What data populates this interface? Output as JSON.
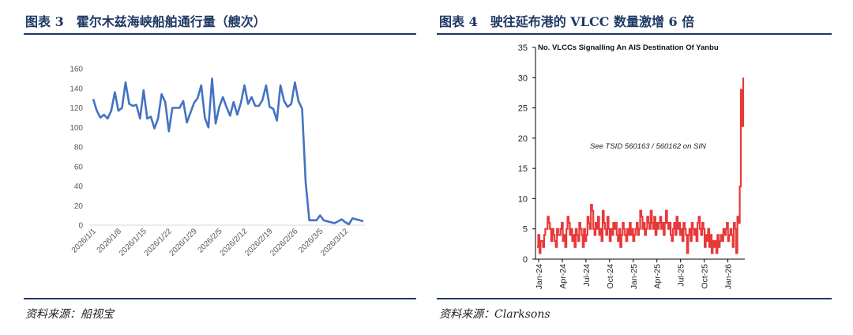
{
  "left": {
    "figure_title": "图表 3　霍尔木兹海峡船舶通行量（艘次）",
    "source": "资料来源：船视宝"
  },
  "right": {
    "figure_title": "图表 4　驶往延布港的 VLCC 数量激增 6 倍",
    "source": "资料来源：Clarksons"
  },
  "chart_data": [
    {
      "type": "line",
      "title": "",
      "xlabel": "",
      "ylabel": "",
      "ylim": [
        0,
        160
      ],
      "yticks": [
        0,
        20,
        40,
        60,
        80,
        100,
        120,
        140,
        160
      ],
      "xtick_labels": [
        "2026/1/1",
        "2026/1/8",
        "2026/1/15",
        "2026/1/22",
        "2026/1/29",
        "2026/2/5",
        "2026/2/12",
        "2026/2/19",
        "2026/2/26",
        "2026/3/5",
        "2026/3/12"
      ],
      "grid": false,
      "legend": "none",
      "color": "#4472C4",
      "series": [
        {
          "values": [
            129,
            117,
            110,
            113,
            109,
            117,
            136,
            117,
            120,
            146,
            124,
            122,
            123,
            109,
            138,
            109,
            111,
            99,
            109,
            134,
            126,
            96,
            120,
            120,
            120,
            127,
            105,
            115,
            125,
            130,
            143,
            110,
            100,
            150,
            104,
            121,
            131,
            121,
            112,
            126,
            113,
            125,
            143,
            124,
            131,
            122,
            122,
            128,
            143,
            121,
            119,
            107,
            143,
            127,
            121,
            124,
            146,
            127,
            119,
            44,
            5,
            5,
            5,
            10,
            5,
            4,
            3,
            2,
            4,
            6,
            3,
            1,
            7,
            6,
            5,
            4
          ]
        }
      ]
    },
    {
      "type": "line",
      "title": "No. VLCCs Signalling An AIS Destination Of Yanbu",
      "annotation": "See TSID 560163 / 560162 on SIN",
      "xlabel": "",
      "ylabel": "",
      "ylim": [
        0,
        35
      ],
      "yticks": [
        0,
        5,
        10,
        15,
        20,
        25,
        30,
        35
      ],
      "xtick_labels": [
        "Jan-24",
        "Apr-24",
        "Jul-24",
        "Oct-24",
        "Jan-25",
        "Apr-25",
        "Jul-25",
        "Oct-25",
        "Jan-26"
      ],
      "grid": false,
      "legend": "none",
      "color": "#E8393A",
      "series": [
        {
          "values": [
            2,
            4,
            1,
            3,
            3,
            2,
            4,
            5,
            5,
            7,
            6,
            5,
            3,
            5,
            4,
            3,
            2,
            5,
            4,
            4,
            5,
            6,
            3,
            4,
            2,
            5,
            7,
            6,
            4,
            5,
            3,
            4,
            2,
            5,
            4,
            3,
            6,
            5,
            4,
            2,
            5,
            3,
            4,
            7,
            6,
            5,
            9,
            8,
            5,
            4,
            6,
            5,
            7,
            4,
            5,
            3,
            8,
            6,
            5,
            4,
            7,
            5,
            3,
            5,
            4,
            6,
            5,
            6,
            4,
            3,
            5,
            2,
            4,
            6,
            5,
            4,
            3,
            5,
            4,
            6,
            4,
            5,
            3,
            4,
            5,
            6,
            4,
            5,
            8,
            7,
            5,
            6,
            4,
            5,
            7,
            6,
            5,
            8,
            6,
            5,
            7,
            4,
            6,
            5,
            6,
            7,
            5,
            6,
            4,
            6,
            8,
            6,
            5,
            6,
            4,
            3,
            5,
            6,
            4,
            7,
            5,
            6,
            4,
            5,
            3,
            6,
            5,
            4,
            1,
            4,
            5,
            3,
            6,
            5,
            4,
            5,
            3,
            6,
            7,
            5,
            4,
            6,
            5,
            2,
            4,
            3,
            5,
            2,
            4,
            1,
            3,
            2,
            3,
            1,
            4,
            2,
            3,
            4,
            3,
            5,
            4,
            5,
            6,
            3,
            4,
            5,
            4,
            2,
            6,
            5,
            1,
            7,
            6,
            12,
            28,
            22,
            30
          ]
        }
      ]
    }
  ]
}
